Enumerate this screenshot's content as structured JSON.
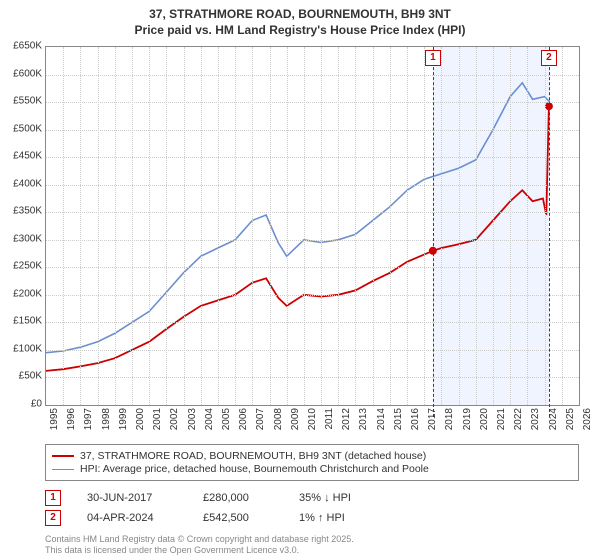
{
  "title_line1": "37, STRATHMORE ROAD, BOURNEMOUTH, BH9 3NT",
  "title_line2": "Price paid vs. HM Land Registry's House Price Index (HPI)",
  "chart": {
    "type": "line",
    "background_color": "#ffffff",
    "border_color": "#888888",
    "grid_color": "#cccccc",
    "x_axis": {
      "min_year": 1995,
      "max_year": 2026,
      "tick_step": 1,
      "tick_labels": [
        "1995",
        "1996",
        "1997",
        "1998",
        "1999",
        "2000",
        "2001",
        "2002",
        "2003",
        "2004",
        "2005",
        "2006",
        "2007",
        "2008",
        "2009",
        "2010",
        "2011",
        "2012",
        "2013",
        "2014",
        "2015",
        "2016",
        "2017",
        "2018",
        "2019",
        "2020",
        "2021",
        "2022",
        "2023",
        "2024",
        "2025",
        "2026"
      ],
      "label_fontsize": 10,
      "label_rotation": -90
    },
    "y_axis": {
      "min": 0,
      "max": 650000,
      "tick_step": 50000,
      "tick_labels": [
        "£0",
        "£50K",
        "£100K",
        "£150K",
        "£200K",
        "£250K",
        "£300K",
        "£350K",
        "£400K",
        "£450K",
        "£500K",
        "£550K",
        "£600K",
        "£650K"
      ],
      "label_fontsize": 10
    },
    "highlight_band": {
      "start_year": 2017.5,
      "end_year": 2024.25,
      "color": "rgba(100,150,255,0.10)"
    },
    "series": [
      {
        "name": "HPI: Average price, detached house, Bournemouth Christchurch and Poole",
        "color": "#6a8fd1",
        "line_width": 1.6,
        "data": [
          [
            1995,
            95000
          ],
          [
            1996,
            98000
          ],
          [
            1997,
            105000
          ],
          [
            1998,
            115000
          ],
          [
            1999,
            130000
          ],
          [
            2000,
            150000
          ],
          [
            2001,
            170000
          ],
          [
            2002,
            205000
          ],
          [
            2003,
            240000
          ],
          [
            2004,
            270000
          ],
          [
            2005,
            285000
          ],
          [
            2006,
            300000
          ],
          [
            2007,
            335000
          ],
          [
            2007.8,
            345000
          ],
          [
            2008.5,
            295000
          ],
          [
            2009,
            270000
          ],
          [
            2010,
            300000
          ],
          [
            2011,
            295000
          ],
          [
            2012,
            300000
          ],
          [
            2013,
            310000
          ],
          [
            2014,
            335000
          ],
          [
            2015,
            360000
          ],
          [
            2016,
            390000
          ],
          [
            2017,
            410000
          ],
          [
            2018,
            420000
          ],
          [
            2019,
            430000
          ],
          [
            2020,
            445000
          ],
          [
            2021,
            500000
          ],
          [
            2022,
            560000
          ],
          [
            2022.7,
            585000
          ],
          [
            2023.3,
            555000
          ],
          [
            2024,
            560000
          ],
          [
            2024.3,
            550000
          ]
        ]
      },
      {
        "name": "37, STRATHMORE ROAD, BOURNEMOUTH, BH9 3NT (detached house)",
        "color": "#cc0000",
        "line_width": 1.8,
        "data": [
          [
            1995,
            62000
          ],
          [
            1996,
            65000
          ],
          [
            1997,
            70000
          ],
          [
            1998,
            76000
          ],
          [
            1999,
            85000
          ],
          [
            2000,
            100000
          ],
          [
            2001,
            115000
          ],
          [
            2002,
            138000
          ],
          [
            2003,
            160000
          ],
          [
            2004,
            180000
          ],
          [
            2005,
            190000
          ],
          [
            2006,
            200000
          ],
          [
            2007,
            222000
          ],
          [
            2007.8,
            230000
          ],
          [
            2008.5,
            195000
          ],
          [
            2009,
            180000
          ],
          [
            2010,
            200000
          ],
          [
            2011,
            197000
          ],
          [
            2012,
            200000
          ],
          [
            2013,
            208000
          ],
          [
            2014,
            225000
          ],
          [
            2015,
            240000
          ],
          [
            2016,
            260000
          ],
          [
            2017.5,
            280000
          ],
          [
            2018,
            285000
          ],
          [
            2019,
            292000
          ],
          [
            2020,
            300000
          ],
          [
            2021,
            335000
          ],
          [
            2022,
            370000
          ],
          [
            2022.7,
            390000
          ],
          [
            2023.3,
            370000
          ],
          [
            2023.9,
            375000
          ],
          [
            2024.1,
            345000
          ],
          [
            2024.25,
            542500
          ]
        ]
      }
    ],
    "markers": [
      {
        "x": 2017.5,
        "y": 280000,
        "color": "#cc0000",
        "radius": 4
      },
      {
        "x": 2024.25,
        "y": 542500,
        "color": "#cc0000",
        "radius": 4
      }
    ],
    "callouts": [
      {
        "id": "1",
        "x_year": 2017.5
      },
      {
        "id": "2",
        "x_year": 2024.25
      }
    ]
  },
  "legend": {
    "border_color": "#888888",
    "items": [
      {
        "color": "#cc0000",
        "width": 2,
        "label": "37, STRATHMORE ROAD, BOURNEMOUTH, BH9 3NT (detached house)"
      },
      {
        "color": "#6a8fd1",
        "width": 1.6,
        "label": "HPI: Average price, detached house, Bournemouth Christchurch and Poole"
      }
    ]
  },
  "transactions": [
    {
      "badge": "1",
      "date": "30-JUN-2017",
      "price": "£280,000",
      "delta_pct": "35%",
      "delta_dir": "down",
      "delta_label": "HPI"
    },
    {
      "badge": "2",
      "date": "04-APR-2024",
      "price": "£542,500",
      "delta_pct": "1%",
      "delta_dir": "up",
      "delta_label": "HPI"
    }
  ],
  "footnote_line1": "Contains HM Land Registry data © Crown copyright and database right 2025.",
  "footnote_line2": "This data is licensed under the Open Government Licence v3.0.",
  "colors": {
    "badge_border": "#cc0000",
    "text": "#333333",
    "footnote": "#888888"
  }
}
